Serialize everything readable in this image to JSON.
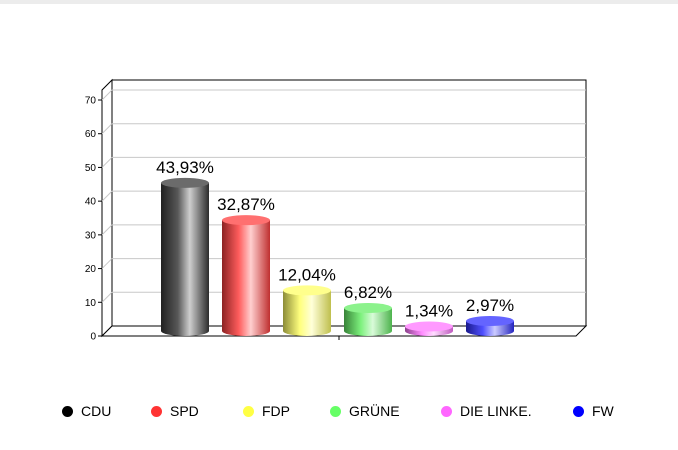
{
  "chart_data": {
    "type": "bar",
    "categories": [
      "CDU",
      "SPD",
      "FDP",
      "GRÜNE",
      "DIE LINKE.",
      "FW"
    ],
    "values": [
      43.93,
      32.87,
      12.04,
      6.82,
      1.34,
      2.97
    ],
    "data_labels": [
      "43,93%",
      "32,87%",
      "12,04%",
      "6,82%",
      "1,34%",
      "2,97%"
    ],
    "colors": [
      "#3a3a3a",
      "#ff4040",
      "#ffff66",
      "#66ee66",
      "#ff77ff",
      "#3030ff"
    ],
    "legend_colors": [
      "#000000",
      "#ff3333",
      "#ffff44",
      "#66ff66",
      "#ff66ff",
      "#0000ff"
    ],
    "y_ticks": [
      "0",
      "10",
      "20",
      "30",
      "40",
      "50",
      "60",
      "70"
    ],
    "ylim": [
      0,
      70
    ],
    "grid": true,
    "legend_position": "bottom"
  }
}
